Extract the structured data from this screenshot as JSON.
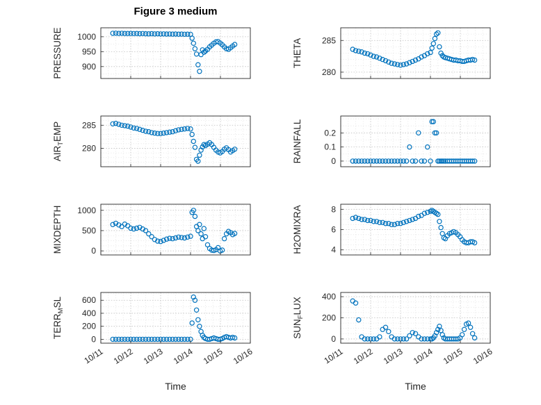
{
  "title": "Figure 3 medium",
  "xlabel": "Time",
  "colors": {
    "marker": "#0072BD",
    "axis": "#262626",
    "grid_major": "#bdbdbd",
    "grid_minor": "#e2e2e2"
  },
  "axis": {
    "xlim": [
      0,
      5
    ],
    "xticklabels": [
      "10/11",
      "10/12",
      "10/13",
      "10/14",
      "10/15",
      "10/16"
    ],
    "x_minor_step": 0.25,
    "x_days": [
      0.4,
      0.5,
      0.6,
      0.7,
      0.8,
      0.9,
      1.0,
      1.1,
      1.2,
      1.3,
      1.4,
      1.5,
      1.6,
      1.7,
      1.8,
      1.9,
      2.0,
      2.1,
      2.2,
      2.3,
      2.4,
      2.5,
      2.6,
      2.7,
      2.8,
      2.9,
      3.0,
      3.05,
      3.1,
      3.15,
      3.2,
      3.25,
      3.3,
      3.35,
      3.4,
      3.45,
      3.5,
      3.57,
      3.64,
      3.71,
      3.78,
      3.85,
      3.92,
      3.99,
      4.06,
      4.13,
      4.2,
      4.27,
      4.34,
      4.41,
      4.48
    ]
  },
  "chart_data": [
    {
      "id": "pressure",
      "type": "scatter",
      "ylabel": "PRESSURE",
      "ylabel_parts": [
        {
          "text": "PRESSURE",
          "sub": false
        }
      ],
      "ylim": [
        860,
        1030
      ],
      "y_minor_step": 25,
      "yticks": [
        [
          900,
          "900"
        ],
        [
          950,
          "950"
        ],
        [
          1000,
          "1000"
        ]
      ],
      "y": [
        1011.5,
        1011.8,
        1011.2,
        1011.6,
        1011.0,
        1010.8,
        1011.2,
        1010.6,
        1010.9,
        1010.3,
        1010.6,
        1010.0,
        1009.8,
        1010.2,
        1009.6,
        1009.9,
        1009.3,
        1009.6,
        1009.0,
        1009.3,
        1008.8,
        1009.1,
        1008.6,
        1008.9,
        1008.4,
        1008.6,
        1008.2,
        995,
        978,
        960,
        942,
        906,
        884,
        940,
        956,
        948,
        952,
        958,
        966,
        972,
        978,
        983,
        984,
        979,
        973,
        966,
        960,
        958,
        963,
        969,
        974
      ]
    },
    {
      "id": "theta",
      "type": "scatter",
      "ylabel": "THETA",
      "ylabel_parts": [
        {
          "text": "THETA",
          "sub": false
        }
      ],
      "ylim": [
        279,
        287
      ],
      "y_minor_step": 1,
      "yticks": [
        [
          280,
          "280"
        ],
        [
          285,
          "285"
        ]
      ],
      "y": [
        283.6,
        283.4,
        283.3,
        283.2,
        283.0,
        282.9,
        282.7,
        282.5,
        282.4,
        282.2,
        282.0,
        281.8,
        281.6,
        281.4,
        281.3,
        281.2,
        281.1,
        281.2,
        281.3,
        281.5,
        281.7,
        281.9,
        282.1,
        282.4,
        282.6,
        282.9,
        283.1,
        283.8,
        284.5,
        285.3,
        286.0,
        286.2,
        284.0,
        283.0,
        282.6,
        282.4,
        282.3,
        282.2,
        282.1,
        282.0,
        281.9,
        281.9,
        281.8,
        281.8,
        281.7,
        281.7,
        281.8,
        281.9,
        281.9,
        282.0,
        281.9
      ]
    },
    {
      "id": "air-temp",
      "type": "scatter",
      "ylabel": "AIR_TEMP",
      "ylabel_parts": [
        {
          "text": "AIR",
          "sub": false
        },
        {
          "text": "T",
          "sub": true
        },
        {
          "text": "EMP",
          "sub": false
        }
      ],
      "ylim": [
        276,
        287
      ],
      "y_minor_step": 1,
      "yticks": [
        [
          280,
          "280"
        ],
        [
          285,
          "285"
        ]
      ],
      "y": [
        285.3,
        285.4,
        285.2,
        285.0,
        284.9,
        284.8,
        284.6,
        284.4,
        284.3,
        284.1,
        283.9,
        283.7,
        283.6,
        283.4,
        283.3,
        283.2,
        283.2,
        283.3,
        283.4,
        283.5,
        283.6,
        283.8,
        284.0,
        284.1,
        284.2,
        284.3,
        284.2,
        283.0,
        281.5,
        280.2,
        277.6,
        277.2,
        278.5,
        279.6,
        280.3,
        280.8,
        280.6,
        280.9,
        281.2,
        280.8,
        280.2,
        279.6,
        279.2,
        279.0,
        279.3,
        279.8,
        280.1,
        279.7,
        279.2,
        279.5,
        279.8
      ]
    },
    {
      "id": "rainfall",
      "type": "scatter",
      "ylabel": "RAINFALL",
      "ylabel_parts": [
        {
          "text": "RAINFALL",
          "sub": false
        }
      ],
      "ylim": [
        -0.04,
        0.32
      ],
      "y_minor_step": 0.05,
      "yticks": [
        [
          0,
          "0"
        ],
        [
          0.1,
          "0.1"
        ],
        [
          0.2,
          "0.2"
        ]
      ],
      "y": [
        0,
        0,
        0,
        0,
        0,
        0,
        0,
        0,
        0,
        0,
        0,
        0,
        0,
        0,
        0,
        0,
        0,
        0,
        0,
        0.1,
        0,
        0,
        0.2,
        0,
        0,
        0.1,
        0,
        0.28,
        0.28,
        0.2,
        0.2,
        0,
        0,
        0,
        0,
        0,
        0,
        0,
        0,
        0,
        0,
        0,
        0,
        0,
        0,
        0,
        0,
        0,
        0,
        0,
        0
      ]
    },
    {
      "id": "mixdepth",
      "type": "scatter",
      "ylabel": "MIXDEPTH",
      "ylabel_parts": [
        {
          "text": "MIXDEPTH",
          "sub": false
        }
      ],
      "ylim": [
        -100,
        1150
      ],
      "y_minor_step": 125,
      "yticks": [
        [
          0,
          "0"
        ],
        [
          500,
          "500"
        ],
        [
          1000,
          "1000"
        ]
      ],
      "y": [
        650,
        680,
        640,
        600,
        660,
        620,
        560,
        540,
        560,
        580,
        540,
        500,
        420,
        350,
        280,
        240,
        230,
        260,
        290,
        310,
        300,
        320,
        340,
        330,
        320,
        340,
        360,
        950,
        1000,
        850,
        600,
        500,
        650,
        420,
        300,
        550,
        350,
        150,
        60,
        20,
        10,
        30,
        80,
        0,
        20,
        300,
        420,
        480,
        450,
        400,
        430
      ]
    },
    {
      "id": "h2omixra",
      "type": "scatter",
      "ylabel": "H2OMIXRA",
      "ylabel_parts": [
        {
          "text": "H2OMIXRA",
          "sub": false
        }
      ],
      "ylim": [
        3.5,
        8.5
      ],
      "y_minor_step": 0.5,
      "yticks": [
        [
          4,
          "4"
        ],
        [
          6,
          "6"
        ],
        [
          8,
          "8"
        ]
      ],
      "y": [
        7.1,
        7.2,
        7.1,
        7.0,
        7.0,
        6.9,
        6.9,
        6.8,
        6.8,
        6.7,
        6.7,
        6.6,
        6.6,
        6.5,
        6.5,
        6.6,
        6.6,
        6.7,
        6.8,
        6.9,
        7.0,
        7.1,
        7.3,
        7.4,
        7.6,
        7.7,
        7.8,
        7.9,
        7.8,
        7.7,
        7.6,
        7.5,
        6.8,
        6.2,
        5.6,
        5.2,
        5.1,
        5.4,
        5.6,
        5.7,
        5.8,
        5.7,
        5.5,
        5.3,
        5.0,
        4.8,
        4.7,
        4.7,
        4.8,
        4.8,
        4.7
      ]
    },
    {
      "id": "terr-msl",
      "type": "scatter",
      "ylabel": "TERR_MSL",
      "ylabel_parts": [
        {
          "text": "TERR",
          "sub": false
        },
        {
          "text": "M",
          "sub": true
        },
        {
          "text": "SL",
          "sub": false
        }
      ],
      "ylim": [
        -60,
        720
      ],
      "y_minor_step": 100,
      "yticks": [
        [
          0,
          "0"
        ],
        [
          200,
          "200"
        ],
        [
          400,
          "400"
        ],
        [
          600,
          "600"
        ]
      ],
      "y": [
        0,
        0,
        0,
        0,
        0,
        0,
        0,
        0,
        0,
        0,
        0,
        0,
        0,
        0,
        0,
        0,
        0,
        0,
        0,
        0,
        0,
        0,
        0,
        0,
        0,
        0,
        0,
        250,
        650,
        600,
        450,
        300,
        200,
        120,
        60,
        30,
        10,
        0,
        0,
        10,
        20,
        10,
        0,
        0,
        10,
        30,
        40,
        30,
        20,
        30,
        20
      ]
    },
    {
      "id": "sun-flux",
      "type": "scatter",
      "ylabel": "SUN_FLUX",
      "ylabel_parts": [
        {
          "text": "SUN",
          "sub": false
        },
        {
          "text": "F",
          "sub": true
        },
        {
          "text": "LUX",
          "sub": false
        }
      ],
      "ylim": [
        -40,
        440
      ],
      "y_minor_step": 50,
      "yticks": [
        [
          0,
          "0"
        ],
        [
          200,
          "200"
        ],
        [
          400,
          "400"
        ]
      ],
      "y": [
        360,
        340,
        180,
        20,
        0,
        0,
        0,
        0,
        0,
        20,
        90,
        110,
        70,
        20,
        0,
        0,
        0,
        0,
        0,
        30,
        60,
        50,
        20,
        0,
        0,
        0,
        0,
        0,
        10,
        30,
        60,
        90,
        120,
        80,
        40,
        10,
        0,
        0,
        0,
        0,
        0,
        0,
        0,
        10,
        40,
        90,
        140,
        150,
        110,
        50,
        10
      ]
    }
  ]
}
